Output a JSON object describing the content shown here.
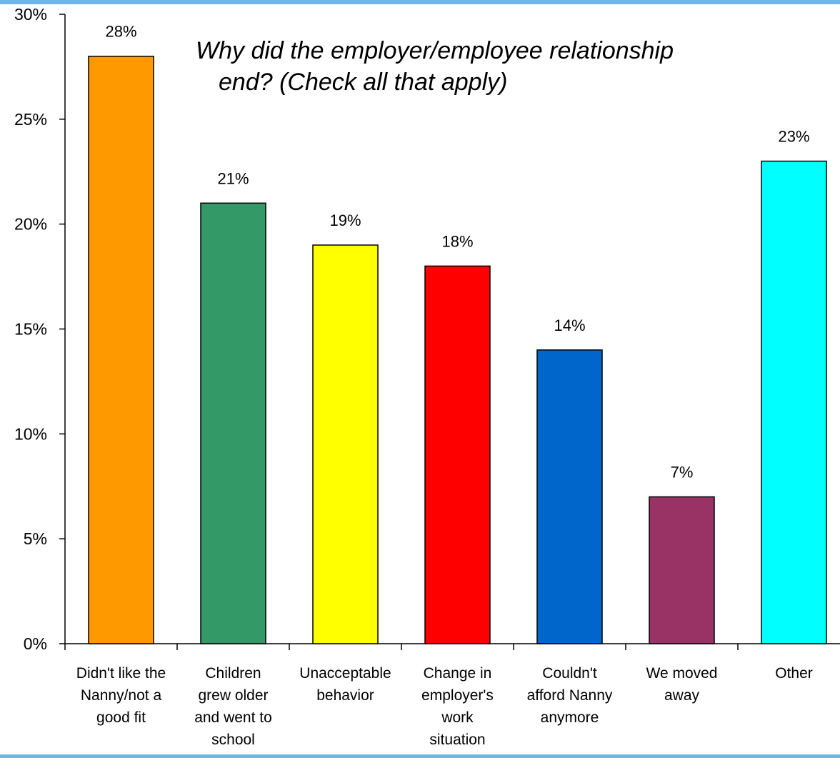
{
  "chart_data": {
    "type": "bar",
    "title_lines": [
      "Why did the employer/employee relationship",
      "end? (Check all that apply)"
    ],
    "categories": [
      [
        "Didn't like the",
        "Nanny/not a",
        "good fit"
      ],
      [
        "Children",
        "grew older",
        "and went to",
        "school"
      ],
      [
        "Unacceptable",
        "behavior"
      ],
      [
        "Change in",
        "employer's",
        "work",
        "situation"
      ],
      [
        "Couldn't",
        "afford Nanny",
        "anymore"
      ],
      [
        "We moved",
        "away"
      ],
      [
        "Other"
      ]
    ],
    "values": [
      28,
      21,
      19,
      18,
      14,
      7,
      23
    ],
    "value_labels": [
      "28%",
      "21%",
      "19%",
      "18%",
      "14%",
      "7%",
      "23%"
    ],
    "colors": [
      "#ff9900",
      "#339966",
      "#ffff00",
      "#ff0000",
      "#0066cc",
      "#993366",
      "#00ffff"
    ],
    "ylim": [
      0,
      30
    ],
    "yticks": [
      0,
      5,
      10,
      15,
      20,
      25,
      30
    ],
    "ytick_labels": [
      "0%",
      "5%",
      "10%",
      "15%",
      "20%",
      "25%",
      "30%"
    ],
    "xlabel": "",
    "ylabel": "",
    "grid": false,
    "legend": "none"
  }
}
